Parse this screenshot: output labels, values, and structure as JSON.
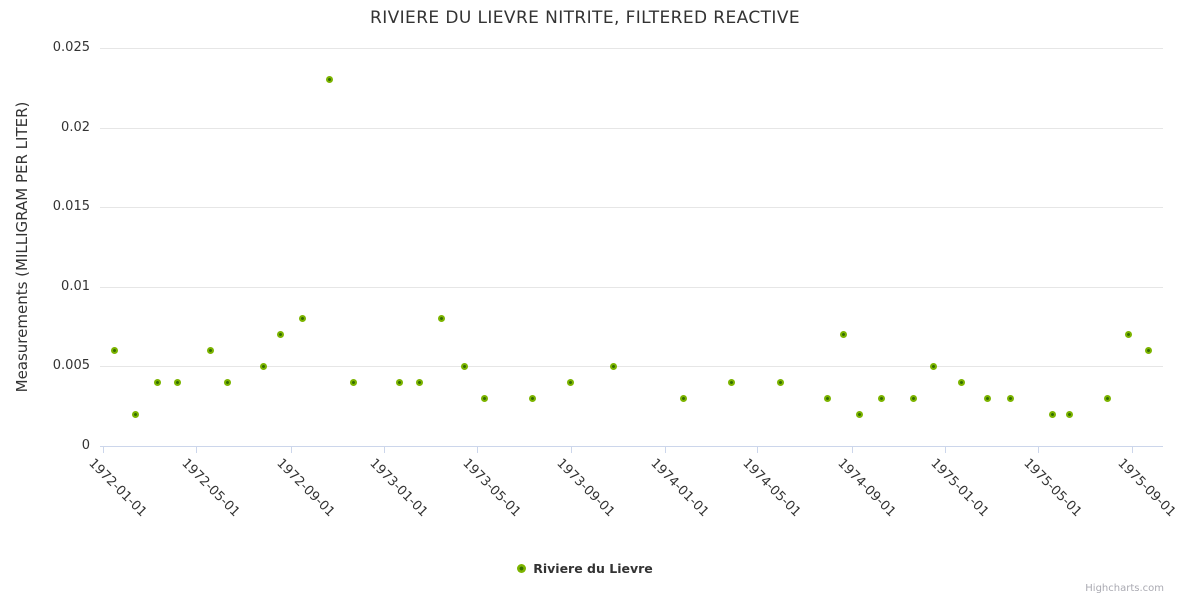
{
  "title": "RIVIERE DU LIEVRE NITRITE, FILTERED REACTIVE",
  "credits": "Highcharts.com",
  "colors": {
    "marker_outer": "#7cb400",
    "marker_center": "#356e00",
    "grid": "#e6e6e6",
    "axis_line": "#ccd6eb",
    "text": "#333333"
  },
  "chart_data": {
    "type": "scatter",
    "title": "RIVIERE DU LIEVRE NITRITE, FILTERED REACTIVE",
    "xlabel": "",
    "ylabel": "Measurements (MILLIGRAM PER LITER)",
    "ylim": [
      0,
      0.025
    ],
    "grid": "horizontal",
    "legend_position": "bottom-center",
    "y_ticks": [
      0,
      0.005,
      0.01,
      0.015,
      0.02,
      0.025
    ],
    "y_tick_labels": [
      "0",
      "0.005",
      "0.01",
      "0.015",
      "0.02",
      "0.025"
    ],
    "x_ticks": [
      "1972-01-01",
      "1972-05-01",
      "1972-09-01",
      "1973-01-01",
      "1973-05-01",
      "1973-09-01",
      "1974-01-01",
      "1974-05-01",
      "1974-09-01",
      "1975-01-01",
      "1975-05-01",
      "1975-09-01"
    ],
    "series": [
      {
        "name": "Riviere du Lievre",
        "color": "#7cb400",
        "points": [
          {
            "date": "1972-01-15",
            "value": 0.006
          },
          {
            "date": "1972-02-12",
            "value": 0.002
          },
          {
            "date": "1972-03-11",
            "value": 0.004
          },
          {
            "date": "1972-04-07",
            "value": 0.004
          },
          {
            "date": "1972-05-20",
            "value": 0.006
          },
          {
            "date": "1972-06-11",
            "value": 0.004
          },
          {
            "date": "1972-07-28",
            "value": 0.005
          },
          {
            "date": "1972-08-19",
            "value": 0.007
          },
          {
            "date": "1972-09-16",
            "value": 0.008
          },
          {
            "date": "1972-10-22",
            "value": 0.023
          },
          {
            "date": "1972-11-22",
            "value": 0.004
          },
          {
            "date": "1973-01-20",
            "value": 0.004
          },
          {
            "date": "1973-02-16",
            "value": 0.004
          },
          {
            "date": "1973-03-16",
            "value": 0.008
          },
          {
            "date": "1973-04-15",
            "value": 0.005
          },
          {
            "date": "1973-05-11",
            "value": 0.003
          },
          {
            "date": "1973-07-13",
            "value": 0.003
          },
          {
            "date": "1973-08-31",
            "value": 0.004
          },
          {
            "date": "1973-10-26",
            "value": 0.005
          },
          {
            "date": "1974-01-25",
            "value": 0.003
          },
          {
            "date": "1974-03-28",
            "value": 0.004
          },
          {
            "date": "1974-05-31",
            "value": 0.004
          },
          {
            "date": "1974-07-31",
            "value": 0.003
          },
          {
            "date": "1974-08-21",
            "value": 0.007
          },
          {
            "date": "1974-09-11",
            "value": 0.002
          },
          {
            "date": "1974-10-10",
            "value": 0.003
          },
          {
            "date": "1974-11-20",
            "value": 0.003
          },
          {
            "date": "1974-12-17",
            "value": 0.005
          },
          {
            "date": "1975-01-22",
            "value": 0.004
          },
          {
            "date": "1975-02-25",
            "value": 0.003
          },
          {
            "date": "1975-03-27",
            "value": 0.003
          },
          {
            "date": "1975-05-20",
            "value": 0.002
          },
          {
            "date": "1975-06-11",
            "value": 0.002
          },
          {
            "date": "1975-07-31",
            "value": 0.003
          },
          {
            "date": "1975-08-27",
            "value": 0.007
          },
          {
            "date": "1975-09-23",
            "value": 0.006
          }
        ]
      }
    ]
  }
}
